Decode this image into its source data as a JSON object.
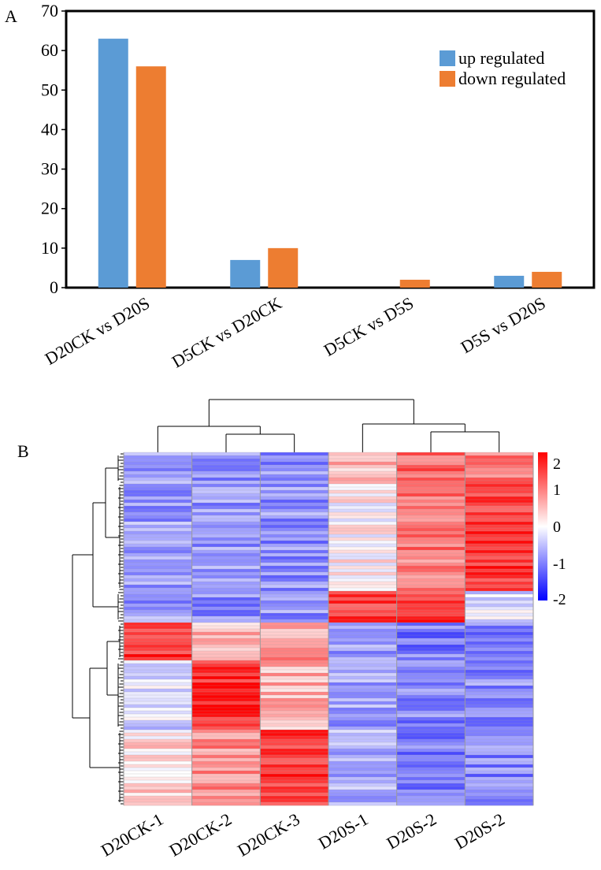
{
  "panel_a_label": "A",
  "panel_b_label": "B",
  "chart_data": [
    {
      "type": "bar",
      "categories": [
        "D20CK vs D20S",
        "D5CK vs D20CK",
        "D5CK vs D5S",
        "D5S vs D20S"
      ],
      "series": [
        {
          "name": "up regulated",
          "values": [
            63,
            7,
            0,
            3
          ],
          "color": "#5b9bd5"
        },
        {
          "name": "down regulated",
          "values": [
            56,
            10,
            2,
            4
          ],
          "color": "#ed7d31"
        }
      ],
      "yticks": [
        0,
        10,
        20,
        30,
        40,
        50,
        60,
        70
      ],
      "ylim": [
        0,
        70
      ],
      "legend_position": "top-right",
      "grid": false
    },
    {
      "type": "heatmap",
      "columns": [
        "D20CK-1",
        "D20CK-2",
        "D20CK-3",
        "D20S-1",
        "D20S-2",
        "D20S-2"
      ],
      "colorbar_ticks": [
        2,
        1,
        0,
        -1,
        -2
      ],
      "color_range": [
        -2,
        2
      ],
      "colors": {
        "low": "#0000ff",
        "mid": "#ffffff",
        "high": "#ff0000"
      },
      "row_dendrogram": true,
      "column_dendrogram": true,
      "cluster_blocks": [
        {
          "rows": 10,
          "values": [
            -0.75,
            -0.85,
            -0.85,
            0.6,
            1.15,
            1.0
          ]
        },
        {
          "rows": 34,
          "values": [
            -0.75,
            -0.85,
            -0.85,
            0.1,
            1.05,
            1.55
          ]
        },
        {
          "rows": 10,
          "values": [
            -0.75,
            -0.85,
            -0.85,
            1.5,
            1.55,
            -0.3
          ]
        },
        {
          "rows": 12,
          "values": [
            1.6,
            0.6,
            0.8,
            -0.7,
            -1.05,
            -1.0
          ]
        },
        {
          "rows": 22,
          "values": [
            -0.3,
            1.7,
            0.6,
            -0.75,
            -1.0,
            -0.9
          ]
        },
        {
          "rows": 24,
          "values": [
            0.3,
            0.9,
            1.6,
            -0.6,
            -1.05,
            -0.95
          ]
        }
      ]
    }
  ]
}
